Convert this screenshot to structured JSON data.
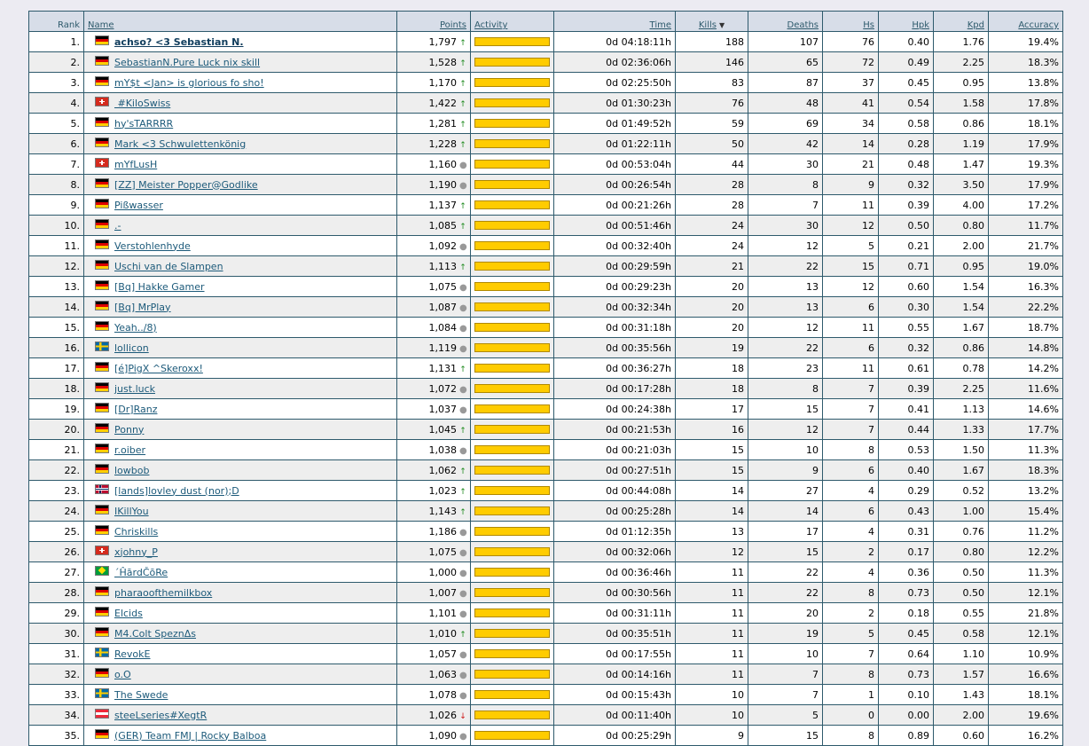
{
  "columns": {
    "rank": "Rank",
    "name": "Name",
    "points": "Points",
    "activity": "Activity",
    "time": "Time",
    "kills": "Kills",
    "deaths": "Deaths",
    "hs": "Hs",
    "hpk": "Hpk",
    "kpd": "Kpd",
    "accuracy": "Accuracy"
  },
  "sort_icon": "sort-descending-icon",
  "flag_colors": {
    "de": "#dd0000",
    "ch": "#d52b1e",
    "se": "#006aa7",
    "no": "#ba0c2f",
    "br": "#009c3b",
    "at": "#ed2939"
  },
  "activity_color": "#ffcc00",
  "rows": [
    {
      "rank": "1.",
      "flag": "de",
      "name": "achso? <3 Sebastian N.",
      "points": "1,797",
      "trend": "up",
      "activity": 1.0,
      "time": "0d 04:18:11h",
      "kills": "188",
      "deaths": "107",
      "hs": "76",
      "hpk": "0.40",
      "kpd": "1.76",
      "accuracy": "19.4%"
    },
    {
      "rank": "2.",
      "flag": "de",
      "name": "SebastianN.Pure Luck nix skill",
      "points": "1,528",
      "trend": "up",
      "activity": 1.0,
      "time": "0d 02:36:06h",
      "kills": "146",
      "deaths": "65",
      "hs": "72",
      "hpk": "0.49",
      "kpd": "2.25",
      "accuracy": "18.3%"
    },
    {
      "rank": "3.",
      "flag": "de",
      "name": "mY$t <Jan> is glorious fo sho!",
      "points": "1,170",
      "trend": "up",
      "activity": 1.0,
      "time": "0d 02:25:50h",
      "kills": "83",
      "deaths": "87",
      "hs": "37",
      "hpk": "0.45",
      "kpd": "0.95",
      "accuracy": "13.8%"
    },
    {
      "rank": "4.",
      "flag": "ch",
      "name": " #KiloSwiss",
      "points": "1,422",
      "trend": "up",
      "activity": 1.0,
      "time": "0d 01:30:23h",
      "kills": "76",
      "deaths": "48",
      "hs": "41",
      "hpk": "0.54",
      "kpd": "1.58",
      "accuracy": "17.8%"
    },
    {
      "rank": "5.",
      "flag": "de",
      "name": "hy'sTARRRR",
      "points": "1,281",
      "trend": "up",
      "activity": 1.0,
      "time": "0d 01:49:52h",
      "kills": "59",
      "deaths": "69",
      "hs": "34",
      "hpk": "0.58",
      "kpd": "0.86",
      "accuracy": "18.1%"
    },
    {
      "rank": "6.",
      "flag": "de",
      "name": "Mark <3 Schwulettenkönig",
      "points": "1,228",
      "trend": "up",
      "activity": 1.0,
      "time": "0d 01:22:11h",
      "kills": "50",
      "deaths": "42",
      "hs": "14",
      "hpk": "0.28",
      "kpd": "1.19",
      "accuracy": "17.9%"
    },
    {
      "rank": "7.",
      "flag": "ch",
      "name": "mYfLusH",
      "points": "1,160",
      "trend": "same",
      "activity": 1.0,
      "time": "0d 00:53:04h",
      "kills": "44",
      "deaths": "30",
      "hs": "21",
      "hpk": "0.48",
      "kpd": "1.47",
      "accuracy": "19.3%"
    },
    {
      "rank": "8.",
      "flag": "de",
      "name": "[ZZ] Meister Popper@Godlike",
      "points": "1,190",
      "trend": "same",
      "activity": 1.0,
      "time": "0d 00:26:54h",
      "kills": "28",
      "deaths": "8",
      "hs": "9",
      "hpk": "0.32",
      "kpd": "3.50",
      "accuracy": "17.9%"
    },
    {
      "rank": "9.",
      "flag": "de",
      "name": "Pißwasser",
      "points": "1,137",
      "trend": "up",
      "activity": 1.0,
      "time": "0d 00:21:26h",
      "kills": "28",
      "deaths": "7",
      "hs": "11",
      "hpk": "0.39",
      "kpd": "4.00",
      "accuracy": "17.2%"
    },
    {
      "rank": "10.",
      "flag": "de",
      "name": ".-",
      "points": "1,085",
      "trend": "up",
      "activity": 1.0,
      "time": "0d 00:51:46h",
      "kills": "24",
      "deaths": "30",
      "hs": "12",
      "hpk": "0.50",
      "kpd": "0.80",
      "accuracy": "11.7%"
    },
    {
      "rank": "11.",
      "flag": "de",
      "name": "Verstohlenhyde",
      "points": "1,092",
      "trend": "same",
      "activity": 1.0,
      "time": "0d 00:32:40h",
      "kills": "24",
      "deaths": "12",
      "hs": "5",
      "hpk": "0.21",
      "kpd": "2.00",
      "accuracy": "21.7%"
    },
    {
      "rank": "12.",
      "flag": "de",
      "name": "Uschi van de Slampen",
      "points": "1,113",
      "trend": "up",
      "activity": 1.0,
      "time": "0d 00:29:59h",
      "kills": "21",
      "deaths": "22",
      "hs": "15",
      "hpk": "0.71",
      "kpd": "0.95",
      "accuracy": "19.0%"
    },
    {
      "rank": "13.",
      "flag": "de",
      "name": "[Bq] Hakke Gamer",
      "points": "1,075",
      "trend": "same",
      "activity": 1.0,
      "time": "0d 00:29:23h",
      "kills": "20",
      "deaths": "13",
      "hs": "12",
      "hpk": "0.60",
      "kpd": "1.54",
      "accuracy": "16.3%"
    },
    {
      "rank": "14.",
      "flag": "de",
      "name": "[Bq] MrPlay",
      "points": "1,087",
      "trend": "same",
      "activity": 1.0,
      "time": "0d 00:32:34h",
      "kills": "20",
      "deaths": "13",
      "hs": "6",
      "hpk": "0.30",
      "kpd": "1.54",
      "accuracy": "22.2%"
    },
    {
      "rank": "15.",
      "flag": "de",
      "name": "Yeah../8)",
      "points": "1,084",
      "trend": "same",
      "activity": 1.0,
      "time": "0d 00:31:18h",
      "kills": "20",
      "deaths": "12",
      "hs": "11",
      "hpk": "0.55",
      "kpd": "1.67",
      "accuracy": "18.7%"
    },
    {
      "rank": "16.",
      "flag": "se",
      "name": "lollicon",
      "points": "1,119",
      "trend": "same",
      "activity": 1.0,
      "time": "0d 00:35:56h",
      "kills": "19",
      "deaths": "22",
      "hs": "6",
      "hpk": "0.32",
      "kpd": "0.86",
      "accuracy": "14.8%"
    },
    {
      "rank": "17.",
      "flag": "de",
      "name": "[é]PigX ^Skeroxx!",
      "points": "1,131",
      "trend": "up",
      "activity": 1.0,
      "time": "0d 00:36:27h",
      "kills": "18",
      "deaths": "23",
      "hs": "11",
      "hpk": "0.61",
      "kpd": "0.78",
      "accuracy": "14.2%"
    },
    {
      "rank": "18.",
      "flag": "de",
      "name": "just.luck",
      "points": "1,072",
      "trend": "same",
      "activity": 1.0,
      "time": "0d 00:17:28h",
      "kills": "18",
      "deaths": "8",
      "hs": "7",
      "hpk": "0.39",
      "kpd": "2.25",
      "accuracy": "11.6%"
    },
    {
      "rank": "19.",
      "flag": "de",
      "name": "[Dr]Ranz",
      "points": "1,037",
      "trend": "same",
      "activity": 1.0,
      "time": "0d 00:24:38h",
      "kills": "17",
      "deaths": "15",
      "hs": "7",
      "hpk": "0.41",
      "kpd": "1.13",
      "accuracy": "14.6%"
    },
    {
      "rank": "20.",
      "flag": "de",
      "name": "Ponny",
      "points": "1,045",
      "trend": "up",
      "activity": 1.0,
      "time": "0d 00:21:53h",
      "kills": "16",
      "deaths": "12",
      "hs": "7",
      "hpk": "0.44",
      "kpd": "1.33",
      "accuracy": "17.7%"
    },
    {
      "rank": "21.",
      "flag": "de",
      "name": "r.oiber",
      "points": "1,038",
      "trend": "same",
      "activity": 1.0,
      "time": "0d 00:21:03h",
      "kills": "15",
      "deaths": "10",
      "hs": "8",
      "hpk": "0.53",
      "kpd": "1.50",
      "accuracy": "11.3%"
    },
    {
      "rank": "22.",
      "flag": "de",
      "name": "lowbob",
      "points": "1,062",
      "trend": "up",
      "activity": 1.0,
      "time": "0d 00:27:51h",
      "kills": "15",
      "deaths": "9",
      "hs": "6",
      "hpk": "0.40",
      "kpd": "1.67",
      "accuracy": "18.3%"
    },
    {
      "rank": "23.",
      "flag": "no",
      "name": "[lands]lovley dust (nor);D",
      "points": "1,023",
      "trend": "up",
      "activity": 1.0,
      "time": "0d 00:44:08h",
      "kills": "14",
      "deaths": "27",
      "hs": "4",
      "hpk": "0.29",
      "kpd": "0.52",
      "accuracy": "13.2%"
    },
    {
      "rank": "24.",
      "flag": "de",
      "name": "IKillYou",
      "points": "1,143",
      "trend": "up",
      "activity": 1.0,
      "time": "0d 00:25:28h",
      "kills": "14",
      "deaths": "14",
      "hs": "6",
      "hpk": "0.43",
      "kpd": "1.00",
      "accuracy": "15.4%"
    },
    {
      "rank": "25.",
      "flag": "de",
      "name": "Chriskills",
      "points": "1,186",
      "trend": "same",
      "activity": 1.0,
      "time": "0d 01:12:35h",
      "kills": "13",
      "deaths": "17",
      "hs": "4",
      "hpk": "0.31",
      "kpd": "0.76",
      "accuracy": "11.2%"
    },
    {
      "rank": "26.",
      "flag": "ch",
      "name": "xjohny_P",
      "points": "1,075",
      "trend": "same",
      "activity": 1.0,
      "time": "0d 00:32:06h",
      "kills": "12",
      "deaths": "15",
      "hs": "2",
      "hpk": "0.17",
      "kpd": "0.80",
      "accuracy": "12.2%"
    },
    {
      "rank": "27.",
      "flag": "br",
      "name": "´ĤārdČōRe",
      "points": "1,000",
      "trend": "same",
      "activity": 1.0,
      "time": "0d 00:36:46h",
      "kills": "11",
      "deaths": "22",
      "hs": "4",
      "hpk": "0.36",
      "kpd": "0.50",
      "accuracy": "11.3%"
    },
    {
      "rank": "28.",
      "flag": "de",
      "name": "pharaoofthemilkbox",
      "points": "1,007",
      "trend": "same",
      "activity": 1.0,
      "time": "0d 00:30:56h",
      "kills": "11",
      "deaths": "22",
      "hs": "8",
      "hpk": "0.73",
      "kpd": "0.50",
      "accuracy": "12.1%"
    },
    {
      "rank": "29.",
      "flag": "de",
      "name": "Elcids",
      "points": "1,101",
      "trend": "same",
      "activity": 1.0,
      "time": "0d 00:31:11h",
      "kills": "11",
      "deaths": "20",
      "hs": "2",
      "hpk": "0.18",
      "kpd": "0.55",
      "accuracy": "21.8%"
    },
    {
      "rank": "30.",
      "flag": "de",
      "name": "M4.Colt SpeznΔs",
      "points": "1,010",
      "trend": "up",
      "activity": 1.0,
      "time": "0d 00:35:51h",
      "kills": "11",
      "deaths": "19",
      "hs": "5",
      "hpk": "0.45",
      "kpd": "0.58",
      "accuracy": "12.1%"
    },
    {
      "rank": "31.",
      "flag": "se",
      "name": "RevokE",
      "points": "1,057",
      "trend": "same",
      "activity": 1.0,
      "time": "0d 00:17:55h",
      "kills": "11",
      "deaths": "10",
      "hs": "7",
      "hpk": "0.64",
      "kpd": "1.10",
      "accuracy": "10.9%"
    },
    {
      "rank": "32.",
      "flag": "de",
      "name": "o.O",
      "points": "1,063",
      "trend": "same",
      "activity": 1.0,
      "time": "0d 00:14:16h",
      "kills": "11",
      "deaths": "7",
      "hs": "8",
      "hpk": "0.73",
      "kpd": "1.57",
      "accuracy": "16.6%"
    },
    {
      "rank": "33.",
      "flag": "se",
      "name": "The Swede",
      "points": "1,078",
      "trend": "same",
      "activity": 1.0,
      "time": "0d 00:15:43h",
      "kills": "10",
      "deaths": "7",
      "hs": "1",
      "hpk": "0.10",
      "kpd": "1.43",
      "accuracy": "18.1%"
    },
    {
      "rank": "34.",
      "flag": "at",
      "name": "steeLseries#XegtR",
      "points": "1,026",
      "trend": "down",
      "activity": 1.0,
      "time": "0d 00:11:40h",
      "kills": "10",
      "deaths": "5",
      "hs": "0",
      "hpk": "0.00",
      "kpd": "2.00",
      "accuracy": "19.6%"
    },
    {
      "rank": "35.",
      "flag": "de",
      "name": "(GER) Team FMJ | Rocky Balboa",
      "points": "1,090",
      "trend": "same",
      "activity": 1.0,
      "time": "0d 00:25:29h",
      "kills": "9",
      "deaths": "15",
      "hs": "8",
      "hpk": "0.89",
      "kpd": "0.60",
      "accuracy": "16.2%"
    }
  ]
}
